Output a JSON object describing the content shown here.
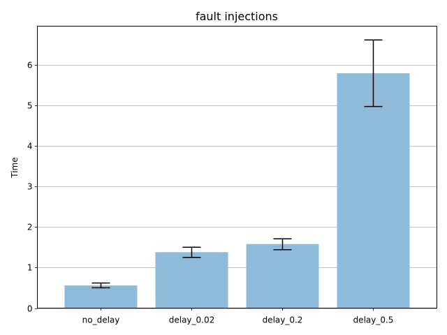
{
  "chart_data": {
    "type": "bar",
    "title": "fault injections",
    "xlabel": "",
    "ylabel": "Time",
    "categories": [
      "no_delay",
      "delay_0.02",
      "delay_0.2",
      "delay_0.5"
    ],
    "values": [
      0.56,
      1.38,
      1.58,
      5.79
    ],
    "error_low": [
      0.5,
      1.25,
      1.44,
      4.97
    ],
    "error_high": [
      0.62,
      1.5,
      1.71,
      6.61
    ],
    "ylim": [
      0,
      6.95
    ],
    "yticks": [
      0,
      1,
      2,
      3,
      4,
      5,
      6
    ],
    "grid": "y",
    "bar_color": "#8fbbdb",
    "error_color": "#000000",
    "grid_color": "#b0b0b0"
  }
}
